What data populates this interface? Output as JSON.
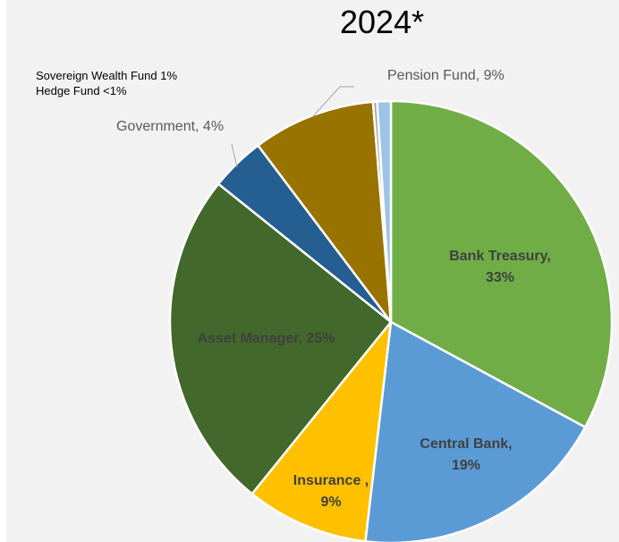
{
  "chart_data": {
    "type": "pie",
    "title": "2024*",
    "notes": [
      "Sovereign Wealth Fund 1%",
      "Hedge Fund <1%"
    ],
    "slices": [
      {
        "key": "bank_treasury",
        "label": "Bank Treasury,",
        "value_label": "33%",
        "value": 33,
        "color": "#70ad47"
      },
      {
        "key": "central_bank",
        "label": "Central Bank,",
        "value_label": "19%",
        "value": 19,
        "color": "#5b9bd5"
      },
      {
        "key": "insurance",
        "label": "Insurance ,",
        "value_label": "9%",
        "value": 9,
        "color": "#ffc000"
      },
      {
        "key": "asset_manager",
        "label": "Asset Manager, 25%",
        "value": 25,
        "color": "#43682b"
      },
      {
        "key": "government",
        "label": "Government, 4%",
        "value": 4,
        "color": "#255e91"
      },
      {
        "key": "pension_fund_brown",
        "value": 9,
        "color": "#997300"
      },
      {
        "key": "hedge_fund",
        "value": 0.3,
        "color": "#a5a5a5"
      },
      {
        "key": "sovereign_wealth_fund",
        "value": 1,
        "color": "#9dc3e6"
      }
    ],
    "callouts": {
      "pension_fund": "Pension Fund, 9%"
    }
  }
}
